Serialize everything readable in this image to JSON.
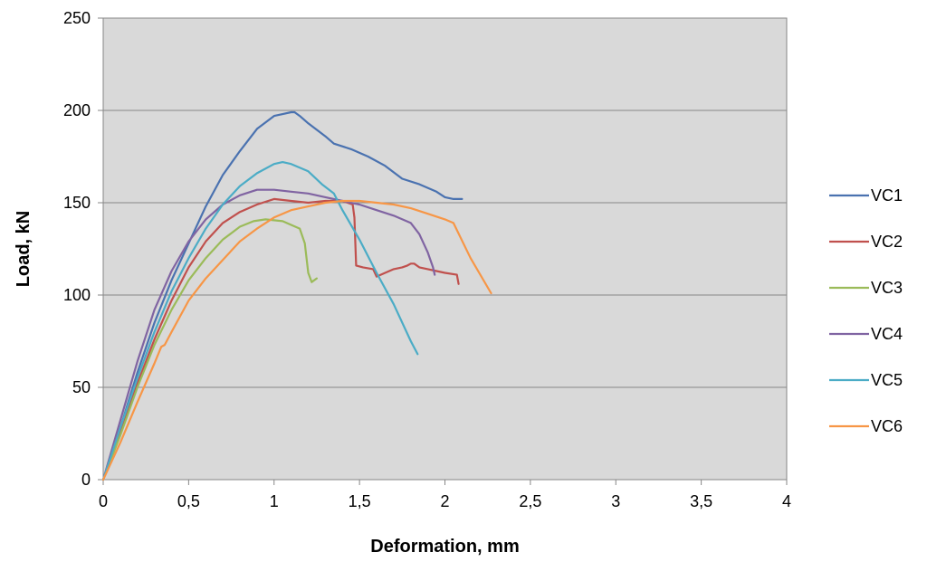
{
  "chart_data": {
    "type": "line",
    "title": "",
    "xlabel": "Deformation, mm",
    "ylabel": "Load, kN",
    "xlim": [
      0,
      4
    ],
    "ylim": [
      0,
      250
    ],
    "x_ticks": [
      0,
      0.5,
      1,
      1.5,
      2,
      2.5,
      3,
      3.5,
      4
    ],
    "x_tick_labels": [
      "0",
      "0,5",
      "1",
      "1,5",
      "2",
      "2,5",
      "3",
      "3,5",
      "4"
    ],
    "y_ticks": [
      0,
      50,
      100,
      150,
      200,
      250
    ],
    "y_tick_labels": [
      "0",
      "50",
      "100",
      "150",
      "200",
      "250"
    ],
    "grid": "horizontal",
    "plot_background": "#d9d9d9",
    "legend_position": "right",
    "series": [
      {
        "name": "VC1",
        "color": "#4a72b0",
        "points": [
          [
            0,
            0
          ],
          [
            0.1,
            28
          ],
          [
            0.2,
            58
          ],
          [
            0.3,
            85
          ],
          [
            0.4,
            108
          ],
          [
            0.5,
            128
          ],
          [
            0.6,
            148
          ],
          [
            0.7,
            165
          ],
          [
            0.8,
            178
          ],
          [
            0.9,
            190
          ],
          [
            1.0,
            197
          ],
          [
            1.05,
            198
          ],
          [
            1.1,
            199
          ],
          [
            1.12,
            199
          ],
          [
            1.15,
            197
          ],
          [
            1.2,
            193
          ],
          [
            1.3,
            186
          ],
          [
            1.35,
            182
          ],
          [
            1.45,
            179
          ],
          [
            1.55,
            175
          ],
          [
            1.65,
            170
          ],
          [
            1.75,
            163
          ],
          [
            1.85,
            160
          ],
          [
            1.95,
            156
          ],
          [
            2.0,
            153
          ],
          [
            2.05,
            152
          ],
          [
            2.1,
            152
          ]
        ]
      },
      {
        "name": "VC2",
        "color": "#c0504d",
        "points": [
          [
            0,
            0
          ],
          [
            0.1,
            26
          ],
          [
            0.2,
            52
          ],
          [
            0.3,
            76
          ],
          [
            0.4,
            97
          ],
          [
            0.5,
            115
          ],
          [
            0.6,
            129
          ],
          [
            0.7,
            139
          ],
          [
            0.8,
            145
          ],
          [
            0.9,
            149
          ],
          [
            1.0,
            152
          ],
          [
            1.1,
            151
          ],
          [
            1.2,
            150
          ],
          [
            1.3,
            151
          ],
          [
            1.4,
            151
          ],
          [
            1.46,
            149
          ],
          [
            1.47,
            142
          ],
          [
            1.48,
            116
          ],
          [
            1.52,
            115
          ],
          [
            1.58,
            114
          ],
          [
            1.6,
            110
          ],
          [
            1.65,
            112
          ],
          [
            1.7,
            114
          ],
          [
            1.75,
            115
          ],
          [
            1.78,
            116
          ],
          [
            1.8,
            117
          ],
          [
            1.82,
            117
          ],
          [
            1.85,
            115
          ],
          [
            1.9,
            114
          ],
          [
            1.95,
            113
          ],
          [
            2.0,
            112
          ],
          [
            2.07,
            111
          ],
          [
            2.08,
            106
          ]
        ]
      },
      {
        "name": "VC3",
        "color": "#9bbb59",
        "points": [
          [
            0,
            0
          ],
          [
            0.1,
            24
          ],
          [
            0.2,
            50
          ],
          [
            0.3,
            73
          ],
          [
            0.4,
            92
          ],
          [
            0.5,
            108
          ],
          [
            0.6,
            120
          ],
          [
            0.7,
            130
          ],
          [
            0.8,
            137
          ],
          [
            0.88,
            140
          ],
          [
            0.95,
            141
          ],
          [
            1.05,
            140
          ],
          [
            1.1,
            138
          ],
          [
            1.15,
            136
          ],
          [
            1.18,
            128
          ],
          [
            1.2,
            112
          ],
          [
            1.22,
            107
          ],
          [
            1.25,
            109
          ]
        ]
      },
      {
        "name": "VC4",
        "color": "#8064a2",
        "points": [
          [
            0,
            0
          ],
          [
            0.1,
            32
          ],
          [
            0.2,
            64
          ],
          [
            0.3,
            92
          ],
          [
            0.4,
            113
          ],
          [
            0.5,
            129
          ],
          [
            0.6,
            141
          ],
          [
            0.7,
            149
          ],
          [
            0.8,
            154
          ],
          [
            0.9,
            157
          ],
          [
            1.0,
            157
          ],
          [
            1.1,
            156
          ],
          [
            1.2,
            155
          ],
          [
            1.3,
            153
          ],
          [
            1.4,
            151
          ],
          [
            1.5,
            149
          ],
          [
            1.6,
            146
          ],
          [
            1.7,
            143
          ],
          [
            1.8,
            139
          ],
          [
            1.85,
            133
          ],
          [
            1.9,
            123
          ],
          [
            1.93,
            115
          ],
          [
            1.94,
            111
          ]
        ]
      },
      {
        "name": "VC5",
        "color": "#4bacc6",
        "points": [
          [
            0,
            0
          ],
          [
            0.1,
            28
          ],
          [
            0.2,
            55
          ],
          [
            0.3,
            80
          ],
          [
            0.4,
            102
          ],
          [
            0.5,
            120
          ],
          [
            0.6,
            136
          ],
          [
            0.7,
            149
          ],
          [
            0.8,
            159
          ],
          [
            0.9,
            166
          ],
          [
            1.0,
            171
          ],
          [
            1.05,
            172
          ],
          [
            1.1,
            171
          ],
          [
            1.2,
            167
          ],
          [
            1.28,
            160
          ],
          [
            1.35,
            155
          ],
          [
            1.4,
            146
          ],
          [
            1.5,
            130
          ],
          [
            1.6,
            112
          ],
          [
            1.7,
            95
          ],
          [
            1.8,
            75
          ],
          [
            1.84,
            68
          ]
        ]
      },
      {
        "name": "VC6",
        "color": "#f79646",
        "points": [
          [
            0,
            0
          ],
          [
            0.1,
            20
          ],
          [
            0.2,
            42
          ],
          [
            0.3,
            63
          ],
          [
            0.34,
            72
          ],
          [
            0.36,
            73
          ],
          [
            0.4,
            80
          ],
          [
            0.5,
            97
          ],
          [
            0.6,
            109
          ],
          [
            0.7,
            119
          ],
          [
            0.8,
            129
          ],
          [
            0.9,
            136
          ],
          [
            1.0,
            142
          ],
          [
            1.1,
            146
          ],
          [
            1.2,
            148
          ],
          [
            1.3,
            150
          ],
          [
            1.4,
            151
          ],
          [
            1.5,
            151
          ],
          [
            1.6,
            150
          ],
          [
            1.7,
            149
          ],
          [
            1.8,
            147
          ],
          [
            1.9,
            144
          ],
          [
            2.0,
            141
          ],
          [
            2.05,
            139
          ],
          [
            2.15,
            120
          ],
          [
            2.27,
            101
          ]
        ]
      }
    ]
  }
}
